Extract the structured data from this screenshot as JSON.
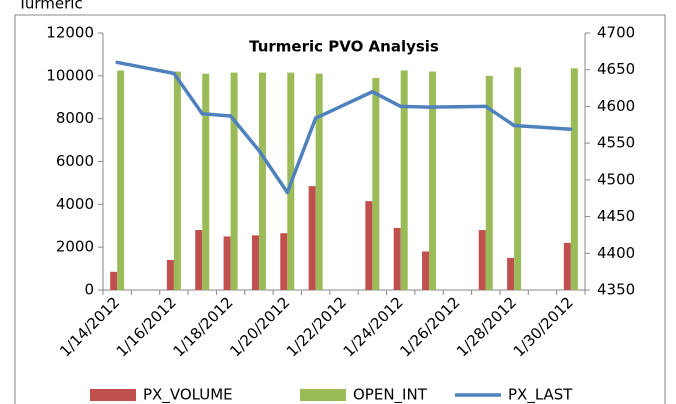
{
  "chart_data": {
    "type": "bar_line",
    "page_title": "Turmeric",
    "title": "Turmeric PVO Analysis",
    "categories": [
      "1/14/2012",
      null,
      "1/16/2012",
      null,
      "1/18/2012",
      null,
      "1/20/2012",
      null,
      "1/22/2012",
      null,
      "1/24/2012",
      null,
      "1/26/2012",
      null,
      "1/28/2012",
      null,
      "1/30/2012"
    ],
    "series": [
      {
        "name": "PX_VOLUME",
        "type": "bar",
        "color": "#c0504d",
        "values": [
          850,
          null,
          1400,
          2800,
          2500,
          2550,
          2650,
          4850,
          null,
          4150,
          2900,
          1800,
          null,
          2800,
          1500,
          null,
          2200
        ]
      },
      {
        "name": "OPEN_INT",
        "type": "bar",
        "color": "#9bbb59",
        "values": [
          10250,
          null,
          10200,
          10100,
          10150,
          10150,
          10150,
          10100,
          null,
          9900,
          10250,
          10200,
          null,
          10000,
          10400,
          null,
          10350
        ]
      },
      {
        "name": "PX_LAST",
        "type": "line",
        "axis": "y2",
        "color": "#4f81bd",
        "values": [
          4660,
          null,
          4645,
          4590,
          4587,
          4540,
          4483,
          4584,
          null,
          4620,
          4600,
          4599,
          null,
          4600,
          4574,
          null,
          4569
        ]
      }
    ],
    "ylim": [
      0,
      12000
    ],
    "yticks": [
      0,
      2000,
      4000,
      6000,
      8000,
      10000,
      12000
    ],
    "y2lim": [
      4350,
      4700
    ],
    "y2ticks": [
      4350,
      4400,
      4450,
      4500,
      4550,
      4600,
      4650,
      4700
    ],
    "legend": "bottom"
  }
}
